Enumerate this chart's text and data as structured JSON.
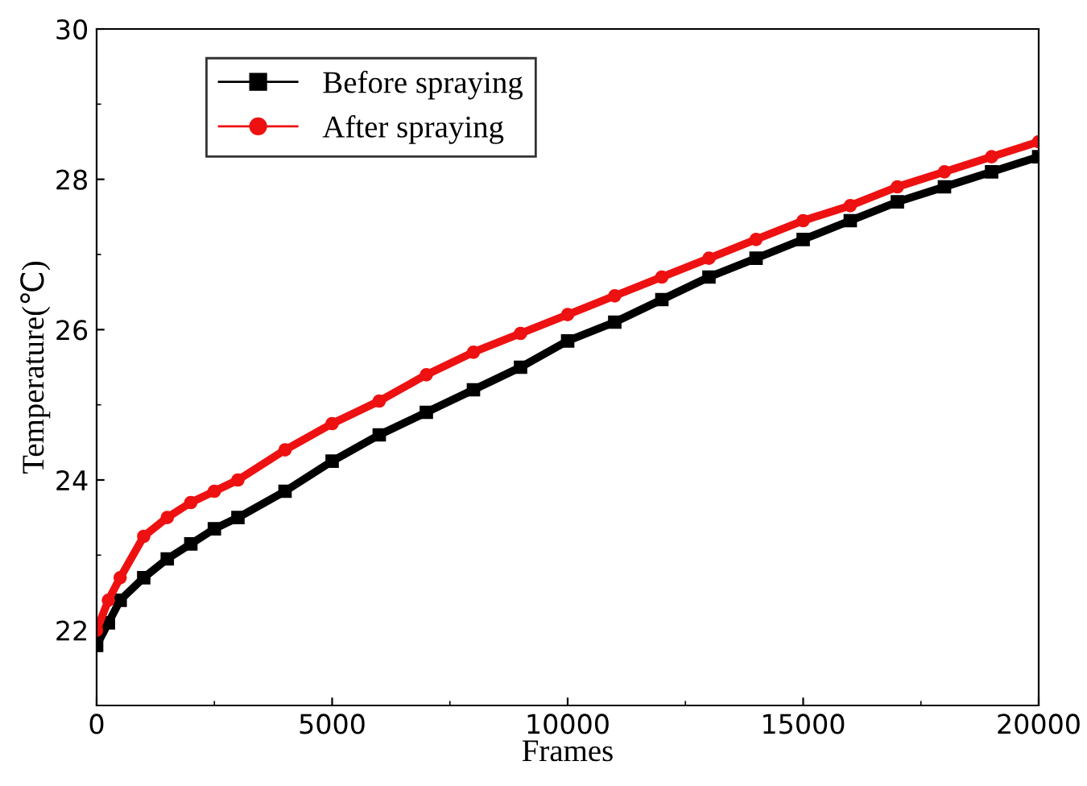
{
  "chart_data": {
    "type": "line",
    "xlabel": "Frames",
    "ylabel": "Temperature(℃)",
    "x": [
      0,
      250,
      500,
      1000,
      1500,
      2000,
      2500,
      3000,
      4000,
      5000,
      6000,
      7000,
      8000,
      9000,
      10000,
      11000,
      12000,
      13000,
      14000,
      15000,
      16000,
      17000,
      18000,
      19000,
      20000
    ],
    "series": [
      {
        "name": "Before spraying",
        "color": "#000000",
        "marker": "square",
        "values": [
          21.8,
          22.1,
          22.4,
          22.7,
          22.95,
          23.15,
          23.35,
          23.5,
          23.85,
          24.25,
          24.6,
          24.9,
          25.2,
          25.5,
          25.85,
          26.1,
          26.4,
          26.7,
          26.95,
          27.2,
          27.45,
          27.7,
          27.9,
          28.1,
          28.3
        ]
      },
      {
        "name": "After spraying",
        "color": "#ee1111",
        "marker": "circle",
        "values": [
          22.0,
          22.4,
          22.7,
          23.25,
          23.5,
          23.7,
          23.85,
          24.0,
          24.4,
          24.75,
          25.05,
          25.4,
          25.7,
          25.95,
          26.2,
          26.45,
          26.7,
          26.95,
          27.2,
          27.45,
          27.65,
          27.9,
          28.1,
          28.3,
          28.5
        ]
      }
    ],
    "xlim": [
      0,
      20000
    ],
    "xticks": [
      0,
      5000,
      10000,
      15000,
      20000
    ],
    "ylim": [
      21,
      30
    ],
    "yticks": [
      22,
      24,
      26,
      28,
      30
    ],
    "grid": false,
    "legend": "top left",
    "line_style": "solid"
  }
}
